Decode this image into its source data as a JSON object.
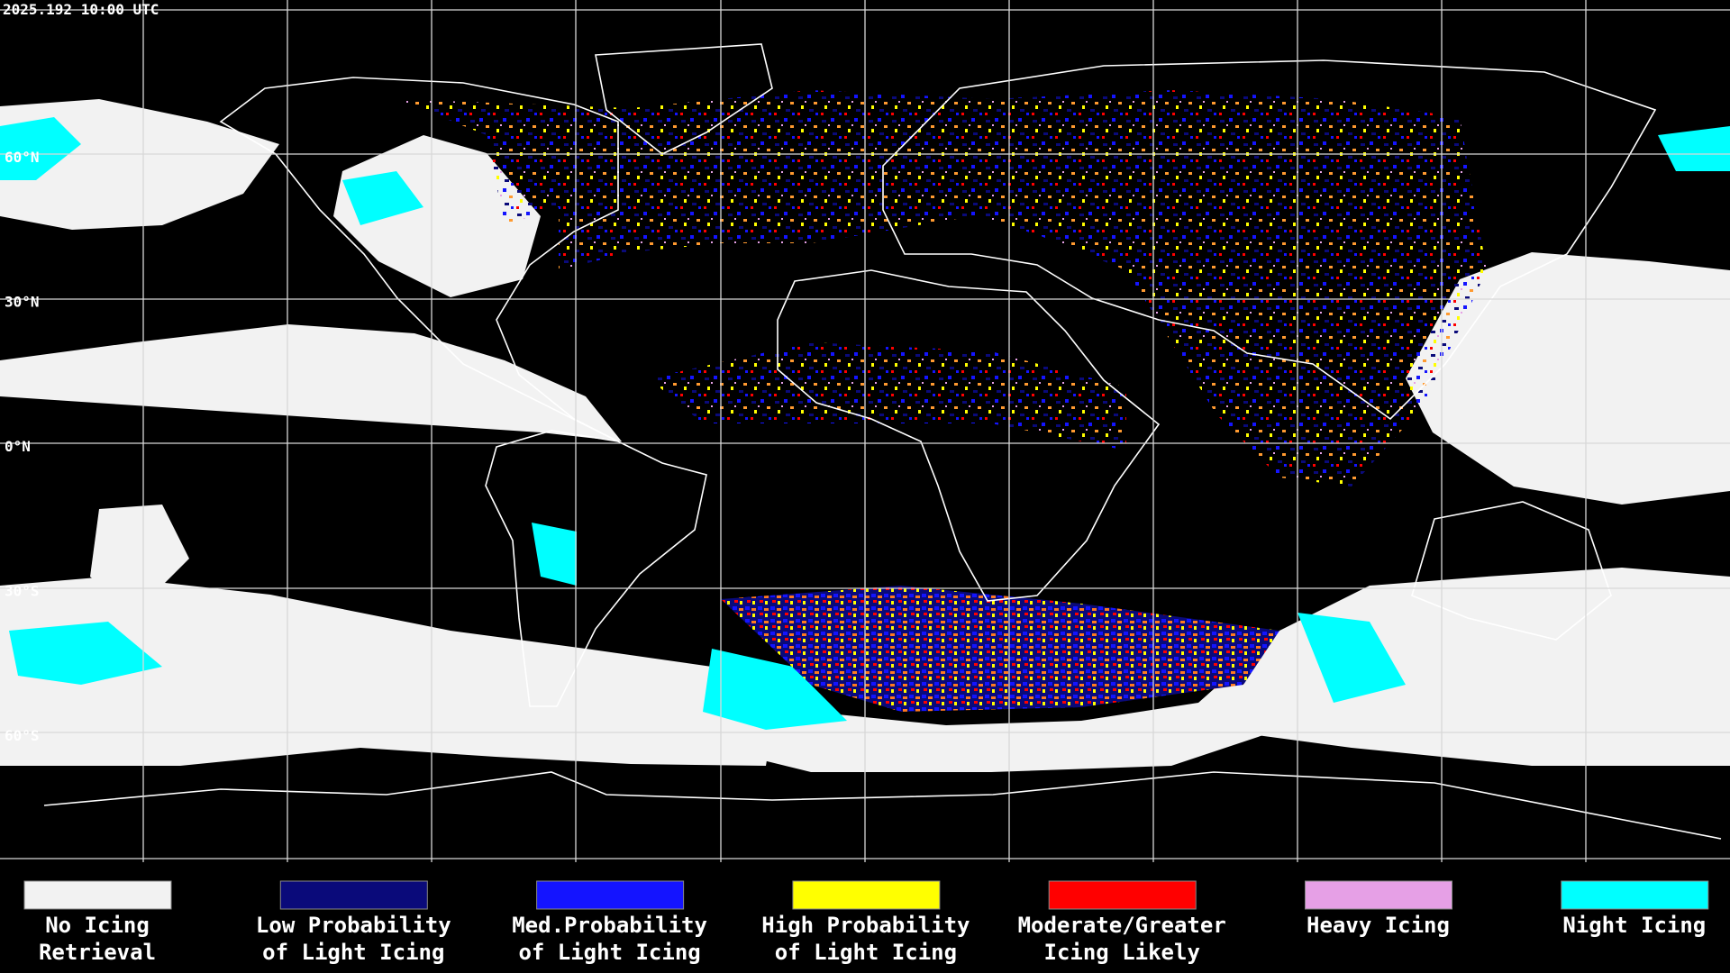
{
  "header": {
    "timestamp": "2025.192 10:00 UTC"
  },
  "map": {
    "latitude_labels": [
      "60°N",
      "30°N",
      "0°N",
      "30°S",
      "60°S"
    ]
  },
  "legend": {
    "items": [
      {
        "label": [
          "No Icing",
          "Retrieval"
        ],
        "color": "#f2f2f2"
      },
      {
        "label": [
          "Low Probability",
          "of Light Icing"
        ],
        "color": "#0a0a7a"
      },
      {
        "label": [
          "Med.Probability",
          "of Light Icing"
        ],
        "color": "#1414ff"
      },
      {
        "label": [
          "High Probability",
          "of Light Icing"
        ],
        "color": "#ffff00"
      },
      {
        "label": [
          "Moderate/Greater",
          "Icing Likely"
        ],
        "color": "#ff0000"
      },
      {
        "label": [
          "Heavy Icing"
        ],
        "color": "#e6a0e6"
      },
      {
        "label": [
          "Night Icing"
        ],
        "color": "#00ffff"
      }
    ]
  }
}
